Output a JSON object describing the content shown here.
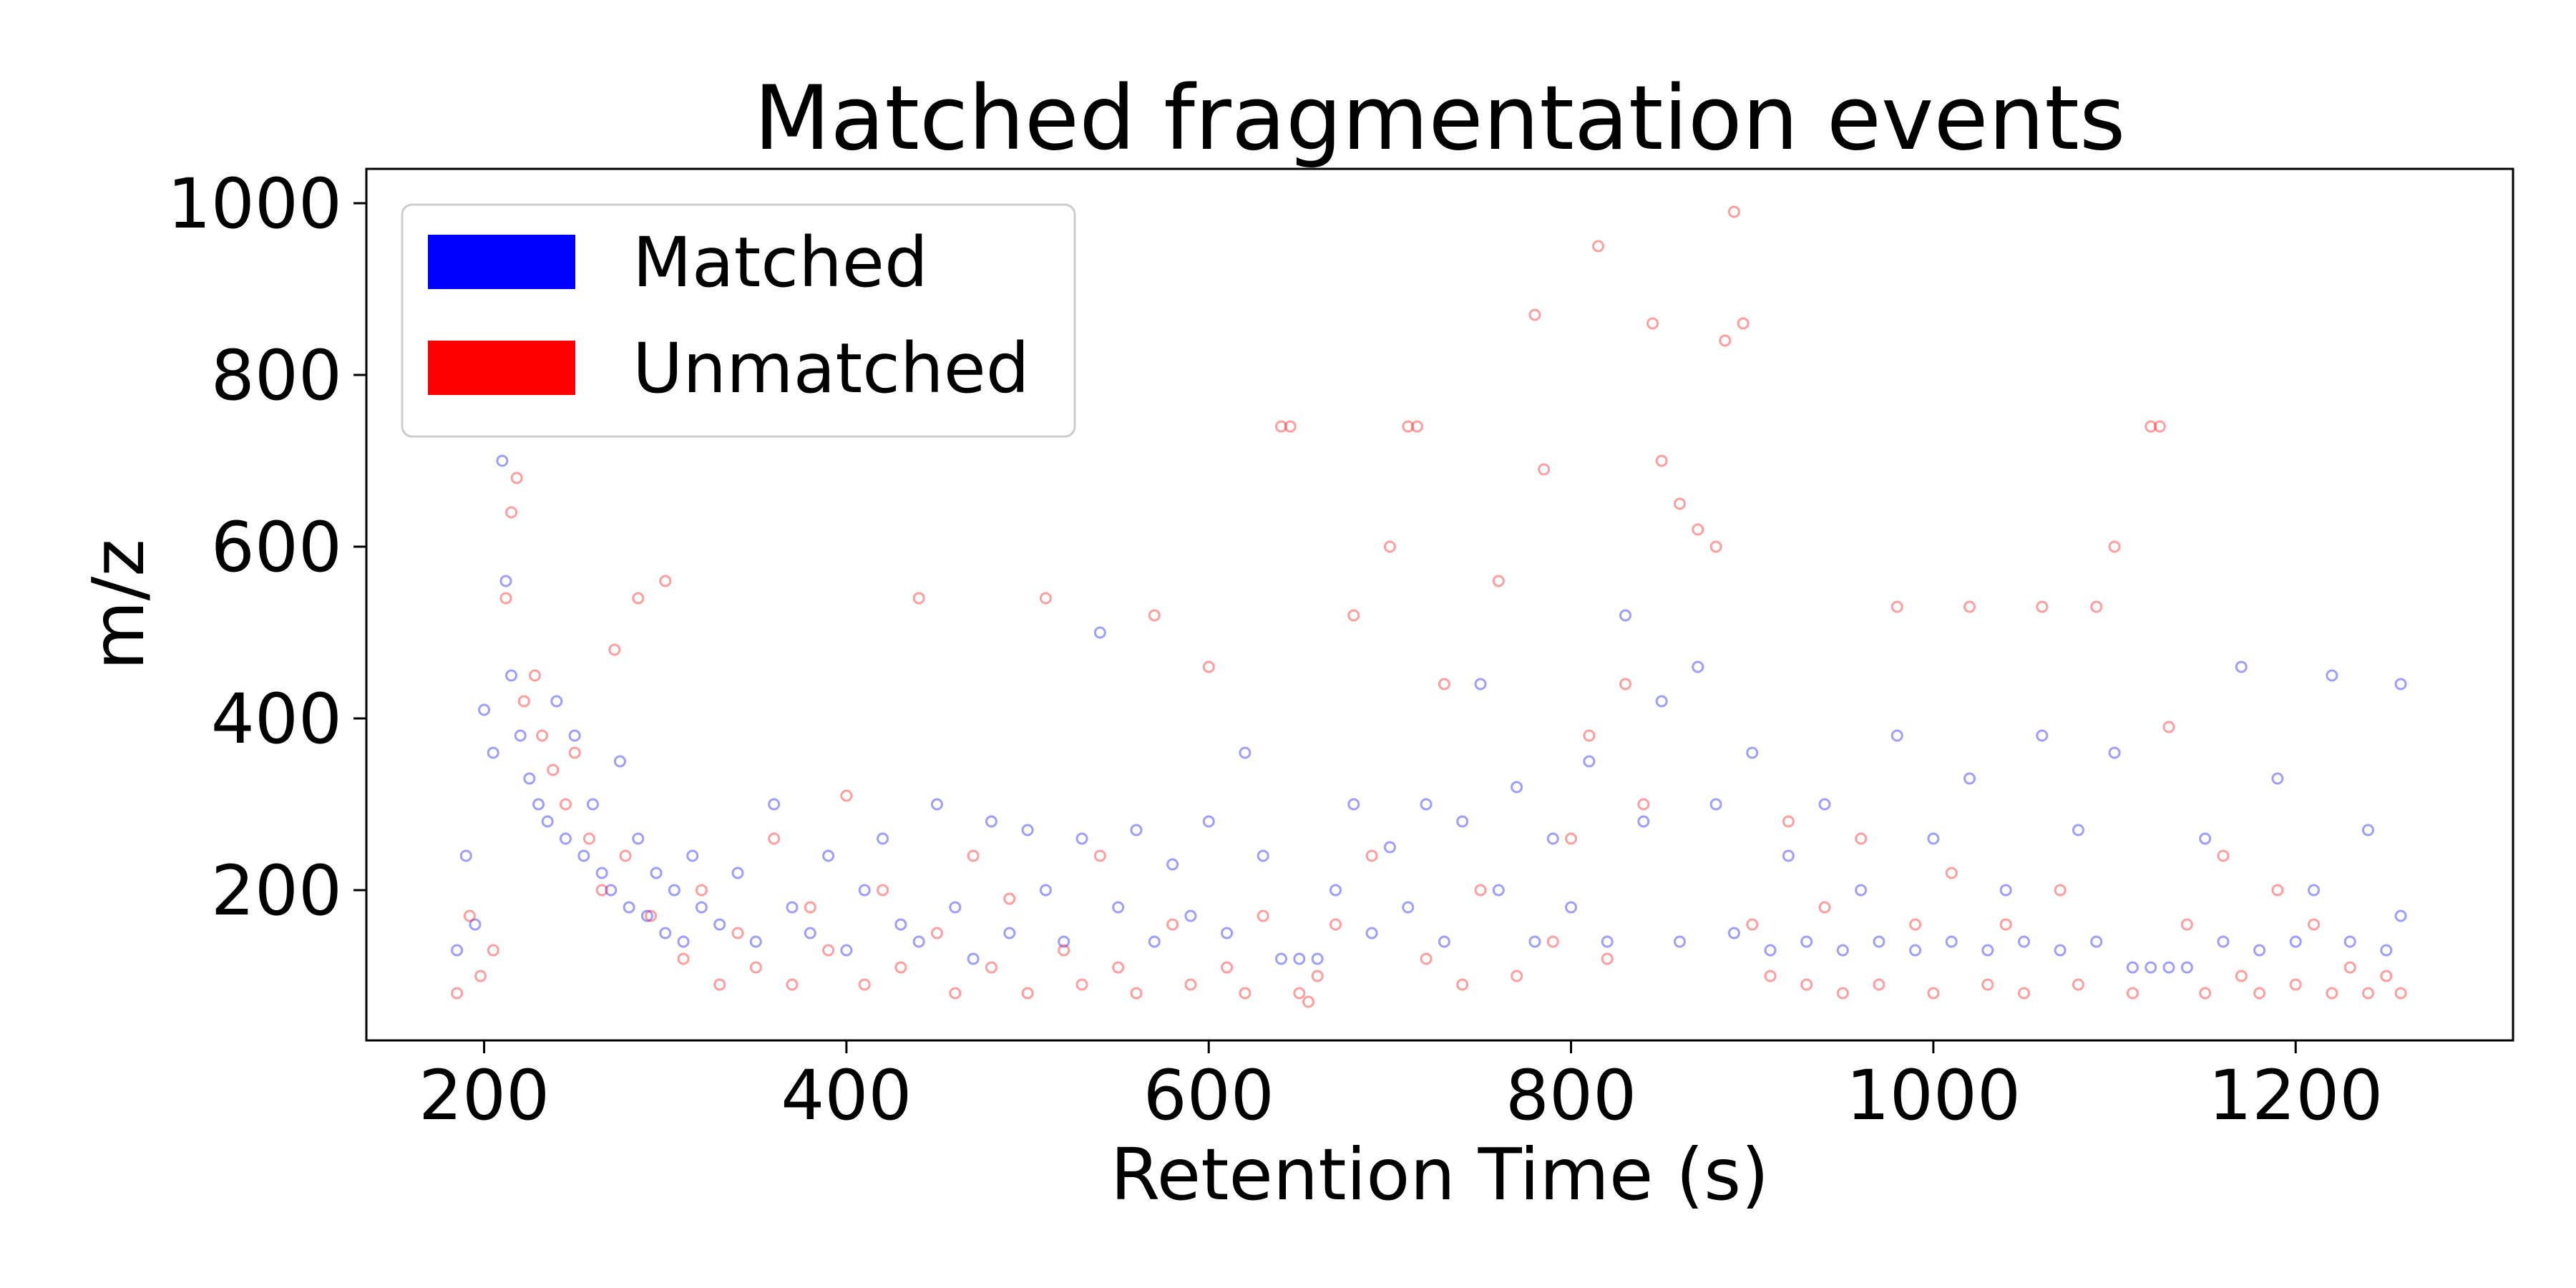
{
  "chart_data": {
    "type": "scatter",
    "title": "Matched fragmentation events",
    "xlabel": "Retention Time (s)",
    "ylabel": "m/z",
    "xlim": [
      135,
      1320
    ],
    "ylim": [
      25,
      1040
    ],
    "xticks": [
      200,
      400,
      600,
      800,
      1000,
      1200
    ],
    "yticks": [
      200,
      400,
      600,
      800,
      1000
    ],
    "xtick_labels": [
      "200",
      "400",
      "600",
      "800",
      "1000",
      "1200"
    ],
    "ytick_labels": [
      "200",
      "400",
      "600",
      "800",
      "1000"
    ],
    "grid": false,
    "legend_position": "top-left",
    "series": [
      {
        "name": "Matched",
        "color": "#0000ff",
        "marker": "hollow-circle",
        "alpha": 0.18,
        "points": [
          [
            185,
            130
          ],
          [
            190,
            240
          ],
          [
            195,
            160
          ],
          [
            200,
            410
          ],
          [
            205,
            360
          ],
          [
            210,
            700
          ],
          [
            212,
            560
          ],
          [
            215,
            450
          ],
          [
            220,
            380
          ],
          [
            225,
            330
          ],
          [
            230,
            300
          ],
          [
            235,
            280
          ],
          [
            240,
            420
          ],
          [
            245,
            260
          ],
          [
            250,
            380
          ],
          [
            255,
            240
          ],
          [
            260,
            300
          ],
          [
            265,
            220
          ],
          [
            270,
            200
          ],
          [
            275,
            350
          ],
          [
            280,
            180
          ],
          [
            285,
            260
          ],
          [
            290,
            170
          ],
          [
            295,
            220
          ],
          [
            300,
            150
          ],
          [
            305,
            200
          ],
          [
            310,
            140
          ],
          [
            315,
            240
          ],
          [
            320,
            180
          ],
          [
            330,
            160
          ],
          [
            340,
            220
          ],
          [
            350,
            140
          ],
          [
            360,
            300
          ],
          [
            370,
            180
          ],
          [
            380,
            150
          ],
          [
            390,
            240
          ],
          [
            400,
            130
          ],
          [
            410,
            200
          ],
          [
            420,
            260
          ],
          [
            430,
            160
          ],
          [
            440,
            140
          ],
          [
            450,
            300
          ],
          [
            460,
            180
          ],
          [
            470,
            120
          ],
          [
            480,
            280
          ],
          [
            490,
            150
          ],
          [
            500,
            270
          ],
          [
            510,
            200
          ],
          [
            520,
            140
          ],
          [
            530,
            260
          ],
          [
            540,
            500
          ],
          [
            550,
            180
          ],
          [
            560,
            270
          ],
          [
            570,
            140
          ],
          [
            580,
            230
          ],
          [
            590,
            170
          ],
          [
            600,
            280
          ],
          [
            610,
            150
          ],
          [
            620,
            360
          ],
          [
            630,
            240
          ],
          [
            640,
            120
          ],
          [
            650,
            120
          ],
          [
            660,
            120
          ],
          [
            670,
            200
          ],
          [
            680,
            300
          ],
          [
            690,
            150
          ],
          [
            700,
            250
          ],
          [
            710,
            180
          ],
          [
            720,
            300
          ],
          [
            730,
            140
          ],
          [
            740,
            280
          ],
          [
            750,
            440
          ],
          [
            760,
            200
          ],
          [
            770,
            320
          ],
          [
            780,
            140
          ],
          [
            790,
            260
          ],
          [
            800,
            180
          ],
          [
            810,
            350
          ],
          [
            820,
            140
          ],
          [
            830,
            520
          ],
          [
            840,
            280
          ],
          [
            850,
            420
          ],
          [
            860,
            140
          ],
          [
            870,
            460
          ],
          [
            880,
            300
          ],
          [
            890,
            150
          ],
          [
            900,
            360
          ],
          [
            910,
            130
          ],
          [
            920,
            240
          ],
          [
            930,
            140
          ],
          [
            940,
            300
          ],
          [
            950,
            130
          ],
          [
            960,
            200
          ],
          [
            970,
            140
          ],
          [
            980,
            380
          ],
          [
            990,
            130
          ],
          [
            1000,
            260
          ],
          [
            1010,
            140
          ],
          [
            1020,
            330
          ],
          [
            1030,
            130
          ],
          [
            1040,
            200
          ],
          [
            1050,
            140
          ],
          [
            1060,
            380
          ],
          [
            1070,
            130
          ],
          [
            1080,
            270
          ],
          [
            1090,
            140
          ],
          [
            1100,
            360
          ],
          [
            1110,
            110
          ],
          [
            1120,
            110
          ],
          [
            1130,
            110
          ],
          [
            1140,
            110
          ],
          [
            1150,
            260
          ],
          [
            1160,
            140
          ],
          [
            1170,
            460
          ],
          [
            1180,
            130
          ],
          [
            1190,
            330
          ],
          [
            1200,
            140
          ],
          [
            1210,
            200
          ],
          [
            1220,
            450
          ],
          [
            1230,
            140
          ],
          [
            1240,
            270
          ],
          [
            1250,
            130
          ],
          [
            1258,
            170
          ],
          [
            1258,
            440
          ]
        ]
      },
      {
        "name": "Unmatched",
        "color": "#ff0000",
        "marker": "hollow-circle",
        "alpha": 0.18,
        "points": [
          [
            185,
            80
          ],
          [
            192,
            170
          ],
          [
            198,
            100
          ],
          [
            205,
            130
          ],
          [
            212,
            540
          ],
          [
            215,
            640
          ],
          [
            218,
            680
          ],
          [
            222,
            420
          ],
          [
            228,
            450
          ],
          [
            232,
            380
          ],
          [
            238,
            340
          ],
          [
            245,
            300
          ],
          [
            250,
            360
          ],
          [
            258,
            260
          ],
          [
            265,
            200
          ],
          [
            272,
            480
          ],
          [
            278,
            240
          ],
          [
            285,
            540
          ],
          [
            292,
            170
          ],
          [
            300,
            560
          ],
          [
            310,
            120
          ],
          [
            320,
            200
          ],
          [
            330,
            90
          ],
          [
            340,
            150
          ],
          [
            350,
            110
          ],
          [
            360,
            260
          ],
          [
            370,
            90
          ],
          [
            380,
            180
          ],
          [
            390,
            130
          ],
          [
            400,
            310
          ],
          [
            410,
            90
          ],
          [
            420,
            200
          ],
          [
            430,
            110
          ],
          [
            440,
            540
          ],
          [
            450,
            150
          ],
          [
            460,
            80
          ],
          [
            470,
            240
          ],
          [
            480,
            110
          ],
          [
            490,
            190
          ],
          [
            500,
            80
          ],
          [
            510,
            540
          ],
          [
            520,
            130
          ],
          [
            530,
            90
          ],
          [
            540,
            240
          ],
          [
            550,
            110
          ],
          [
            560,
            80
          ],
          [
            570,
            520
          ],
          [
            580,
            160
          ],
          [
            590,
            90
          ],
          [
            600,
            460
          ],
          [
            610,
            110
          ],
          [
            620,
            80
          ],
          [
            630,
            170
          ],
          [
            640,
            740
          ],
          [
            645,
            740
          ],
          [
            650,
            80
          ],
          [
            655,
            70
          ],
          [
            660,
            100
          ],
          [
            670,
            160
          ],
          [
            680,
            520
          ],
          [
            690,
            240
          ],
          [
            700,
            600
          ],
          [
            710,
            740
          ],
          [
            715,
            740
          ],
          [
            720,
            120
          ],
          [
            730,
            440
          ],
          [
            740,
            90
          ],
          [
            750,
            200
          ],
          [
            760,
            560
          ],
          [
            770,
            100
          ],
          [
            780,
            870
          ],
          [
            785,
            690
          ],
          [
            790,
            140
          ],
          [
            800,
            260
          ],
          [
            810,
            380
          ],
          [
            815,
            950
          ],
          [
            820,
            120
          ],
          [
            830,
            440
          ],
          [
            840,
            300
          ],
          [
            845,
            860
          ],
          [
            850,
            700
          ],
          [
            860,
            650
          ],
          [
            870,
            620
          ],
          [
            880,
            600
          ],
          [
            885,
            840
          ],
          [
            890,
            990
          ],
          [
            895,
            860
          ],
          [
            900,
            160
          ],
          [
            910,
            100
          ],
          [
            920,
            280
          ],
          [
            930,
            90
          ],
          [
            940,
            180
          ],
          [
            950,
            80
          ],
          [
            960,
            260
          ],
          [
            970,
            90
          ],
          [
            980,
            530
          ],
          [
            990,
            160
          ],
          [
            1000,
            80
          ],
          [
            1010,
            220
          ],
          [
            1020,
            530
          ],
          [
            1030,
            90
          ],
          [
            1040,
            160
          ],
          [
            1050,
            80
          ],
          [
            1060,
            530
          ],
          [
            1070,
            200
          ],
          [
            1080,
            90
          ],
          [
            1090,
            530
          ],
          [
            1100,
            600
          ],
          [
            1110,
            80
          ],
          [
            1120,
            740
          ],
          [
            1125,
            740
          ],
          [
            1130,
            390
          ],
          [
            1140,
            160
          ],
          [
            1150,
            80
          ],
          [
            1160,
            240
          ],
          [
            1170,
            100
          ],
          [
            1180,
            80
          ],
          [
            1190,
            200
          ],
          [
            1200,
            90
          ],
          [
            1210,
            160
          ],
          [
            1220,
            80
          ],
          [
            1230,
            110
          ],
          [
            1240,
            80
          ],
          [
            1250,
            100
          ],
          [
            1258,
            80
          ]
        ]
      }
    ]
  }
}
